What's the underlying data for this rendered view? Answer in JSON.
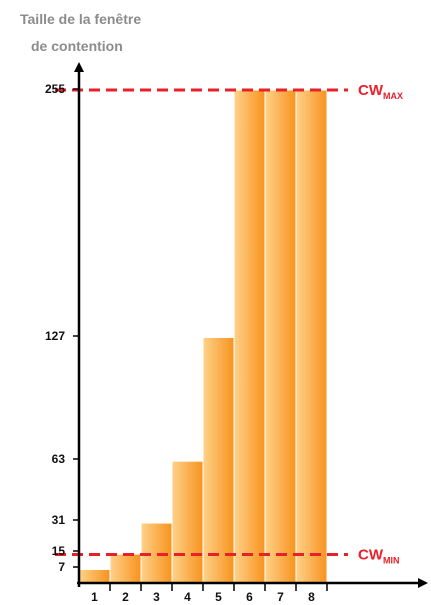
{
  "chart_data": {
    "type": "bar",
    "title_lines": [
      "Taille de la fenêtre",
      "de contention"
    ],
    "categories": [
      "1",
      "2",
      "3",
      "4",
      "5",
      "6",
      "7",
      "8"
    ],
    "values": [
      7,
      15,
      31,
      63,
      127,
      255,
      255,
      255
    ],
    "yticks": [
      7,
      15,
      31,
      63,
      127,
      255
    ],
    "ylim": [
      0,
      255
    ],
    "grid": false,
    "reference_lines": [
      {
        "value": 255,
        "label_main": "CW",
        "label_sub": "MAX",
        "style": "dashed"
      },
      {
        "value": 7,
        "label_main": "CW",
        "label_sub": "MIN",
        "style": "dashed"
      }
    ]
  },
  "colors": {
    "bar_light": "#ffd28a",
    "bar_dark": "#f7931e",
    "bar_border": "#ffffff",
    "axis": "#000000",
    "reference": "#e8202a",
    "title": "#8c8c8c"
  }
}
